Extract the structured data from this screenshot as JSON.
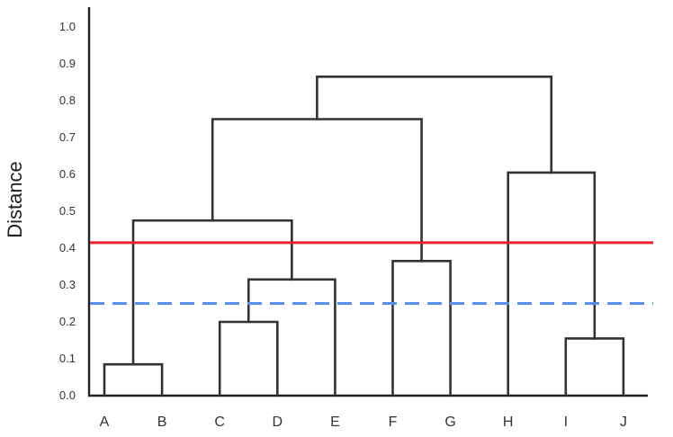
{
  "chart_data": {
    "type": "dendrogram",
    "ylabel": "Distance",
    "ylim": [
      0,
      1.0
    ],
    "yticks": [
      "0.0",
      "0.1",
      "0.2",
      "0.3",
      "0.4",
      "0.5",
      "0.6",
      "0.7",
      "0.8",
      "0.9",
      "1.0"
    ],
    "leaves": [
      "A",
      "B",
      "C",
      "D",
      "E",
      "F",
      "G",
      "H",
      "I",
      "J"
    ],
    "merges": [
      {
        "left": "A",
        "right": "B",
        "height": 0.085
      },
      {
        "left": "I",
        "right": "J",
        "height": 0.155
      },
      {
        "left": "C",
        "right": "D",
        "height": 0.2
      },
      {
        "left": "C,D",
        "right": "E",
        "height": 0.315
      },
      {
        "left": "F",
        "right": "G",
        "height": 0.365
      },
      {
        "left": "A,B",
        "right": "C,D,E",
        "height": 0.475
      },
      {
        "left": "H",
        "right": "I,J",
        "height": 0.605
      },
      {
        "left": "A,B,C,D,E",
        "right": "F,G",
        "height": 0.75
      },
      {
        "left": "A,B,C,D,E,F,G",
        "right": "H,I,J",
        "height": 0.865
      }
    ],
    "cut_lines": [
      {
        "value": 0.415,
        "color": "#e8222a",
        "style": "solid"
      },
      {
        "value": 0.25,
        "color": "#5b8ee6",
        "style": "dashed"
      }
    ],
    "axis_color": "#222222",
    "link_color": "#333333"
  }
}
